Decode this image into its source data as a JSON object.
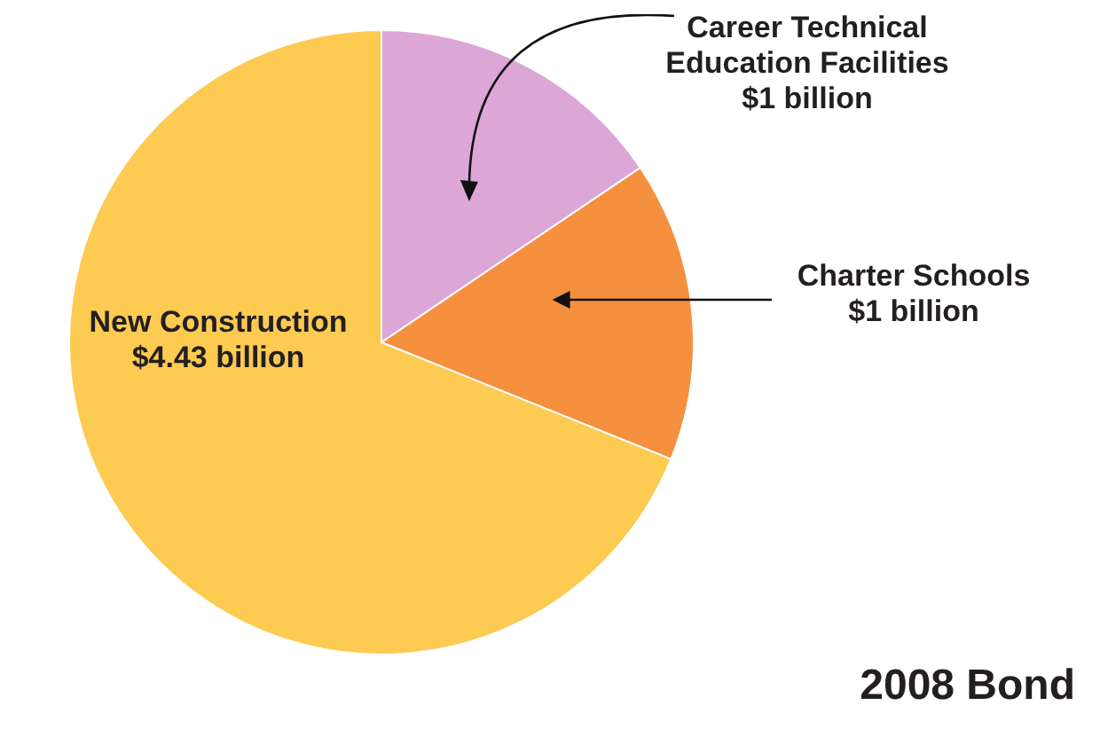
{
  "chart_data": {
    "type": "pie",
    "title": "2008 Bond",
    "categories": [
      "Career Technical Education Facilities",
      "Charter Schools",
      "New Construction"
    ],
    "values": [
      1,
      1,
      4.43
    ],
    "value_labels": [
      "$1 billion",
      "$1 billion",
      "$4.43 billion"
    ],
    "colors": [
      "#dca6d6",
      "#f4903e",
      "#fdca52"
    ]
  }
}
